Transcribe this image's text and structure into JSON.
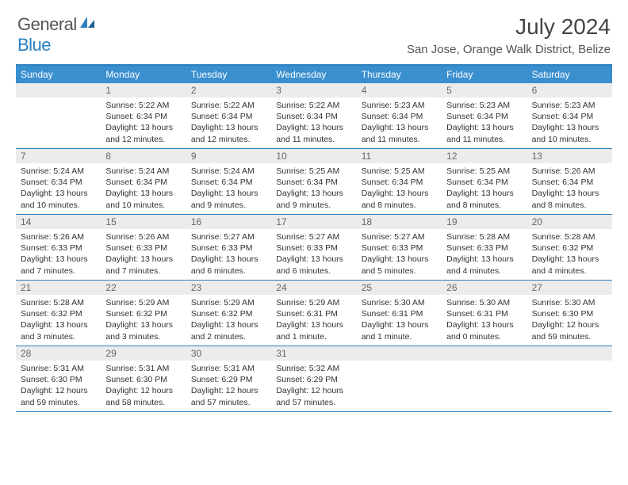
{
  "logo": {
    "general": "General",
    "blue": "Blue"
  },
  "title": "July 2024",
  "location": "San Jose, Orange Walk District, Belize",
  "colors": {
    "header_bar": "#3a8fcf",
    "divider": "#2a7fbf",
    "daynum_bg": "#ececec",
    "text": "#333333",
    "background": "#ffffff"
  },
  "weekday_labels": [
    "Sunday",
    "Monday",
    "Tuesday",
    "Wednesday",
    "Thursday",
    "Friday",
    "Saturday"
  ],
  "weeks": [
    [
      {
        "n": "",
        "sr": "",
        "ss": "",
        "dl1": "",
        "dl2": ""
      },
      {
        "n": "1",
        "sr": "Sunrise: 5:22 AM",
        "ss": "Sunset: 6:34 PM",
        "dl1": "Daylight: 13 hours",
        "dl2": "and 12 minutes."
      },
      {
        "n": "2",
        "sr": "Sunrise: 5:22 AM",
        "ss": "Sunset: 6:34 PM",
        "dl1": "Daylight: 13 hours",
        "dl2": "and 12 minutes."
      },
      {
        "n": "3",
        "sr": "Sunrise: 5:22 AM",
        "ss": "Sunset: 6:34 PM",
        "dl1": "Daylight: 13 hours",
        "dl2": "and 11 minutes."
      },
      {
        "n": "4",
        "sr": "Sunrise: 5:23 AM",
        "ss": "Sunset: 6:34 PM",
        "dl1": "Daylight: 13 hours",
        "dl2": "and 11 minutes."
      },
      {
        "n": "5",
        "sr": "Sunrise: 5:23 AM",
        "ss": "Sunset: 6:34 PM",
        "dl1": "Daylight: 13 hours",
        "dl2": "and 11 minutes."
      },
      {
        "n": "6",
        "sr": "Sunrise: 5:23 AM",
        "ss": "Sunset: 6:34 PM",
        "dl1": "Daylight: 13 hours",
        "dl2": "and 10 minutes."
      }
    ],
    [
      {
        "n": "7",
        "sr": "Sunrise: 5:24 AM",
        "ss": "Sunset: 6:34 PM",
        "dl1": "Daylight: 13 hours",
        "dl2": "and 10 minutes."
      },
      {
        "n": "8",
        "sr": "Sunrise: 5:24 AM",
        "ss": "Sunset: 6:34 PM",
        "dl1": "Daylight: 13 hours",
        "dl2": "and 10 minutes."
      },
      {
        "n": "9",
        "sr": "Sunrise: 5:24 AM",
        "ss": "Sunset: 6:34 PM",
        "dl1": "Daylight: 13 hours",
        "dl2": "and 9 minutes."
      },
      {
        "n": "10",
        "sr": "Sunrise: 5:25 AM",
        "ss": "Sunset: 6:34 PM",
        "dl1": "Daylight: 13 hours",
        "dl2": "and 9 minutes."
      },
      {
        "n": "11",
        "sr": "Sunrise: 5:25 AM",
        "ss": "Sunset: 6:34 PM",
        "dl1": "Daylight: 13 hours",
        "dl2": "and 8 minutes."
      },
      {
        "n": "12",
        "sr": "Sunrise: 5:25 AM",
        "ss": "Sunset: 6:34 PM",
        "dl1": "Daylight: 13 hours",
        "dl2": "and 8 minutes."
      },
      {
        "n": "13",
        "sr": "Sunrise: 5:26 AM",
        "ss": "Sunset: 6:34 PM",
        "dl1": "Daylight: 13 hours",
        "dl2": "and 8 minutes."
      }
    ],
    [
      {
        "n": "14",
        "sr": "Sunrise: 5:26 AM",
        "ss": "Sunset: 6:33 PM",
        "dl1": "Daylight: 13 hours",
        "dl2": "and 7 minutes."
      },
      {
        "n": "15",
        "sr": "Sunrise: 5:26 AM",
        "ss": "Sunset: 6:33 PM",
        "dl1": "Daylight: 13 hours",
        "dl2": "and 7 minutes."
      },
      {
        "n": "16",
        "sr": "Sunrise: 5:27 AM",
        "ss": "Sunset: 6:33 PM",
        "dl1": "Daylight: 13 hours",
        "dl2": "and 6 minutes."
      },
      {
        "n": "17",
        "sr": "Sunrise: 5:27 AM",
        "ss": "Sunset: 6:33 PM",
        "dl1": "Daylight: 13 hours",
        "dl2": "and 6 minutes."
      },
      {
        "n": "18",
        "sr": "Sunrise: 5:27 AM",
        "ss": "Sunset: 6:33 PM",
        "dl1": "Daylight: 13 hours",
        "dl2": "and 5 minutes."
      },
      {
        "n": "19",
        "sr": "Sunrise: 5:28 AM",
        "ss": "Sunset: 6:33 PM",
        "dl1": "Daylight: 13 hours",
        "dl2": "and 4 minutes."
      },
      {
        "n": "20",
        "sr": "Sunrise: 5:28 AM",
        "ss": "Sunset: 6:32 PM",
        "dl1": "Daylight: 13 hours",
        "dl2": "and 4 minutes."
      }
    ],
    [
      {
        "n": "21",
        "sr": "Sunrise: 5:28 AM",
        "ss": "Sunset: 6:32 PM",
        "dl1": "Daylight: 13 hours",
        "dl2": "and 3 minutes."
      },
      {
        "n": "22",
        "sr": "Sunrise: 5:29 AM",
        "ss": "Sunset: 6:32 PM",
        "dl1": "Daylight: 13 hours",
        "dl2": "and 3 minutes."
      },
      {
        "n": "23",
        "sr": "Sunrise: 5:29 AM",
        "ss": "Sunset: 6:32 PM",
        "dl1": "Daylight: 13 hours",
        "dl2": "and 2 minutes."
      },
      {
        "n": "24",
        "sr": "Sunrise: 5:29 AM",
        "ss": "Sunset: 6:31 PM",
        "dl1": "Daylight: 13 hours",
        "dl2": "and 1 minute."
      },
      {
        "n": "25",
        "sr": "Sunrise: 5:30 AM",
        "ss": "Sunset: 6:31 PM",
        "dl1": "Daylight: 13 hours",
        "dl2": "and 1 minute."
      },
      {
        "n": "26",
        "sr": "Sunrise: 5:30 AM",
        "ss": "Sunset: 6:31 PM",
        "dl1": "Daylight: 13 hours",
        "dl2": "and 0 minutes."
      },
      {
        "n": "27",
        "sr": "Sunrise: 5:30 AM",
        "ss": "Sunset: 6:30 PM",
        "dl1": "Daylight: 12 hours",
        "dl2": "and 59 minutes."
      }
    ],
    [
      {
        "n": "28",
        "sr": "Sunrise: 5:31 AM",
        "ss": "Sunset: 6:30 PM",
        "dl1": "Daylight: 12 hours",
        "dl2": "and 59 minutes."
      },
      {
        "n": "29",
        "sr": "Sunrise: 5:31 AM",
        "ss": "Sunset: 6:30 PM",
        "dl1": "Daylight: 12 hours",
        "dl2": "and 58 minutes."
      },
      {
        "n": "30",
        "sr": "Sunrise: 5:31 AM",
        "ss": "Sunset: 6:29 PM",
        "dl1": "Daylight: 12 hours",
        "dl2": "and 57 minutes."
      },
      {
        "n": "31",
        "sr": "Sunrise: 5:32 AM",
        "ss": "Sunset: 6:29 PM",
        "dl1": "Daylight: 12 hours",
        "dl2": "and 57 minutes."
      },
      {
        "n": "",
        "sr": "",
        "ss": "",
        "dl1": "",
        "dl2": ""
      },
      {
        "n": "",
        "sr": "",
        "ss": "",
        "dl1": "",
        "dl2": ""
      },
      {
        "n": "",
        "sr": "",
        "ss": "",
        "dl1": "",
        "dl2": ""
      }
    ]
  ]
}
